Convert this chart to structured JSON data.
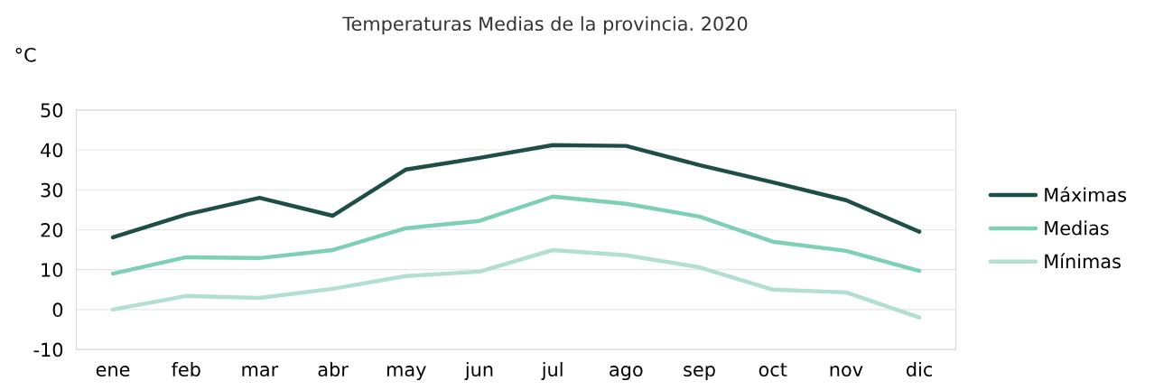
{
  "chart_data": {
    "type": "line",
    "title": "Temperaturas Medias de la provincia. 2020",
    "ylabel": "°C",
    "categories": [
      "ene",
      "feb",
      "mar",
      "abr",
      "may",
      "jun",
      "jul",
      "ago",
      "sep",
      "oct",
      "nov",
      "dic"
    ],
    "series": [
      {
        "name": "Máximas",
        "color": "#1f4e48",
        "values": [
          18.1,
          23.8,
          28.0,
          23.5,
          35.1,
          38.0,
          41.2,
          41.0,
          36.2,
          31.9,
          27.4,
          19.5
        ]
      },
      {
        "name": "Medias",
        "color": "#7dcfb6",
        "values": [
          9.0,
          13.1,
          12.9,
          14.9,
          20.4,
          22.2,
          28.3,
          26.5,
          23.3,
          17.0,
          14.7,
          9.7
        ]
      },
      {
        "name": "Mínimas",
        "color": "#b2dfd0",
        "values": [
          0.0,
          3.4,
          2.9,
          5.2,
          8.4,
          9.5,
          14.9,
          13.6,
          10.6,
          5.0,
          4.3,
          -2.0
        ]
      }
    ],
    "ylim": [
      -10,
      50
    ],
    "yticks": [
      -10,
      0,
      10,
      20,
      30,
      40,
      50
    ],
    "grid": "y",
    "legend": "right",
    "marker": "none",
    "line_style": "solid"
  }
}
